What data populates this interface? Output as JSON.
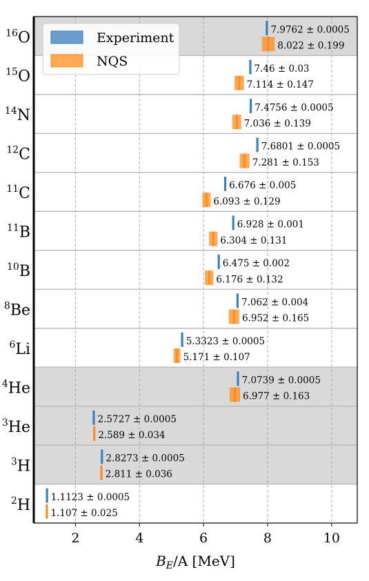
{
  "chart_data": {
    "type": "bar",
    "orientation": "horizontal",
    "xlabel_main": "B",
    "xlabel_sub": "E",
    "xlabel_rest": "/A [MeV]",
    "xlim": [
      0.7,
      10.8
    ],
    "xticks": [
      2,
      4,
      6,
      8,
      10
    ],
    "grid": "vertical-dashed",
    "legend_placement": "top-left",
    "legend": [
      {
        "name": "Experiment",
        "color": "#3b7fbf"
      },
      {
        "name": "NQS",
        "color": "#ff8c1a"
      }
    ],
    "nuclei": [
      {
        "mass": "16",
        "symbol": "O",
        "shaded": true,
        "exp": {
          "value": 7.9762,
          "err": 0.0005,
          "label": "7.9762 ± 0.0005"
        },
        "nqs": {
          "value": 8.022,
          "err": 0.199,
          "label": "8.022 ± 0.199"
        }
      },
      {
        "mass": "15",
        "symbol": "O",
        "shaded": false,
        "exp": {
          "value": 7.46,
          "err": 0.03,
          "label": "7.46 ± 0.03"
        },
        "nqs": {
          "value": 7.114,
          "err": 0.147,
          "label": "7.114 ± 0.147"
        }
      },
      {
        "mass": "14",
        "symbol": "N",
        "shaded": false,
        "exp": {
          "value": 7.4756,
          "err": 0.0005,
          "label": "7.4756 ± 0.0005"
        },
        "nqs": {
          "value": 7.036,
          "err": 0.139,
          "label": "7.036 ± 0.139"
        }
      },
      {
        "mass": "12",
        "symbol": "C",
        "shaded": false,
        "exp": {
          "value": 7.6801,
          "err": 0.0005,
          "label": "7.6801 ± 0.0005"
        },
        "nqs": {
          "value": 7.281,
          "err": 0.153,
          "label": "7.281 ± 0.153"
        }
      },
      {
        "mass": "11",
        "symbol": "C",
        "shaded": false,
        "exp": {
          "value": 6.676,
          "err": 0.005,
          "label": "6.676 ± 0.005"
        },
        "nqs": {
          "value": 6.093,
          "err": 0.129,
          "label": "6.093 ± 0.129"
        }
      },
      {
        "mass": "11",
        "symbol": "B",
        "shaded": false,
        "exp": {
          "value": 6.928,
          "err": 0.001,
          "label": "6.928 ± 0.001"
        },
        "nqs": {
          "value": 6.304,
          "err": 0.131,
          "label": "6.304 ± 0.131"
        }
      },
      {
        "mass": "10",
        "symbol": "B",
        "shaded": false,
        "exp": {
          "value": 6.475,
          "err": 0.002,
          "label": "6.475 ± 0.002"
        },
        "nqs": {
          "value": 6.176,
          "err": 0.132,
          "label": "6.176 ± 0.132"
        }
      },
      {
        "mass": "8",
        "symbol": "Be",
        "shaded": false,
        "exp": {
          "value": 7.062,
          "err": 0.004,
          "label": "7.062 ± 0.004"
        },
        "nqs": {
          "value": 6.952,
          "err": 0.165,
          "label": "6.952 ± 0.165"
        }
      },
      {
        "mass": "6",
        "symbol": "Li",
        "shaded": false,
        "exp": {
          "value": 5.3323,
          "err": 0.0005,
          "label": "5.3323 ± 0.0005"
        },
        "nqs": {
          "value": 5.171,
          "err": 0.107,
          "label": "5.171 ± 0.107"
        }
      },
      {
        "mass": "4",
        "symbol": "He",
        "shaded": true,
        "exp": {
          "value": 7.0739,
          "err": 0.0005,
          "label": "7.0739 ± 0.0005"
        },
        "nqs": {
          "value": 6.977,
          "err": 0.163,
          "label": "6.977 ± 0.163"
        }
      },
      {
        "mass": "3",
        "symbol": "He",
        "shaded": true,
        "exp": {
          "value": 2.5727,
          "err": 0.0005,
          "label": "2.5727 ± 0.0005"
        },
        "nqs": {
          "value": 2.589,
          "err": 0.034,
          "label": "2.589 ± 0.034"
        }
      },
      {
        "mass": "3",
        "symbol": "H",
        "shaded": true,
        "exp": {
          "value": 2.8273,
          "err": 0.0005,
          "label": "2.8273 ± 0.0005"
        },
        "nqs": {
          "value": 2.811,
          "err": 0.036,
          "label": "2.811 ± 0.036"
        }
      },
      {
        "mass": "2",
        "symbol": "H",
        "shaded": false,
        "exp": {
          "value": 1.1123,
          "err": 0.0005,
          "label": "1.1123 ± 0.0005"
        },
        "nqs": {
          "value": 1.107,
          "err": 0.025,
          "label": "1.107 ± 0.025"
        }
      }
    ]
  }
}
